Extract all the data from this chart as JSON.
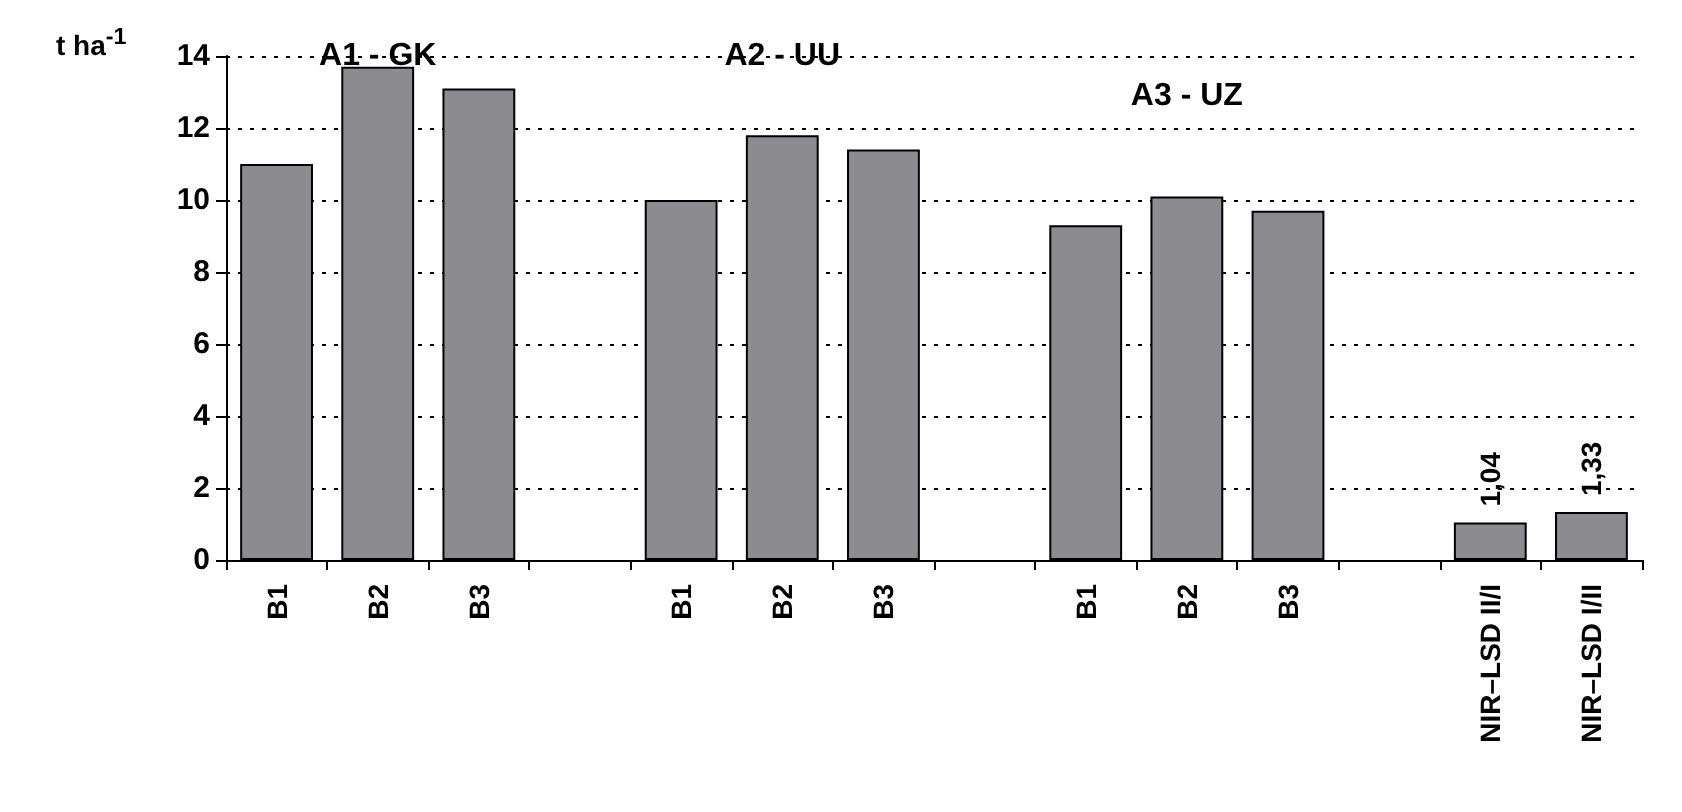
{
  "chart_data": {
    "type": "bar",
    "ylabel": "t ha$^{-1}$",
    "categories": [
      "B1",
      "B2",
      "B3",
      null,
      "B1",
      "B2",
      "B3",
      null,
      "B1",
      "B2",
      "B3",
      null,
      "NIR–LSD II/I",
      "NIR–LSD I/II"
    ],
    "values": [
      11.0,
      13.7,
      13.1,
      null,
      10.0,
      11.8,
      11.4,
      null,
      9.3,
      10.1,
      9.7,
      null,
      1.04,
      1.33
    ],
    "value_labels": [
      null,
      null,
      null,
      null,
      null,
      null,
      null,
      null,
      null,
      null,
      null,
      null,
      "1,04",
      "1,33"
    ],
    "color": "#8c8c90",
    "annotations": [
      "A1 - GK",
      "A2 - UU",
      "A3 - UZ"
    ],
    "ylim": [
      0,
      14
    ],
    "yticks": [
      0,
      2,
      4,
      6,
      8,
      10,
      12,
      14
    ],
    "grid": "y"
  }
}
